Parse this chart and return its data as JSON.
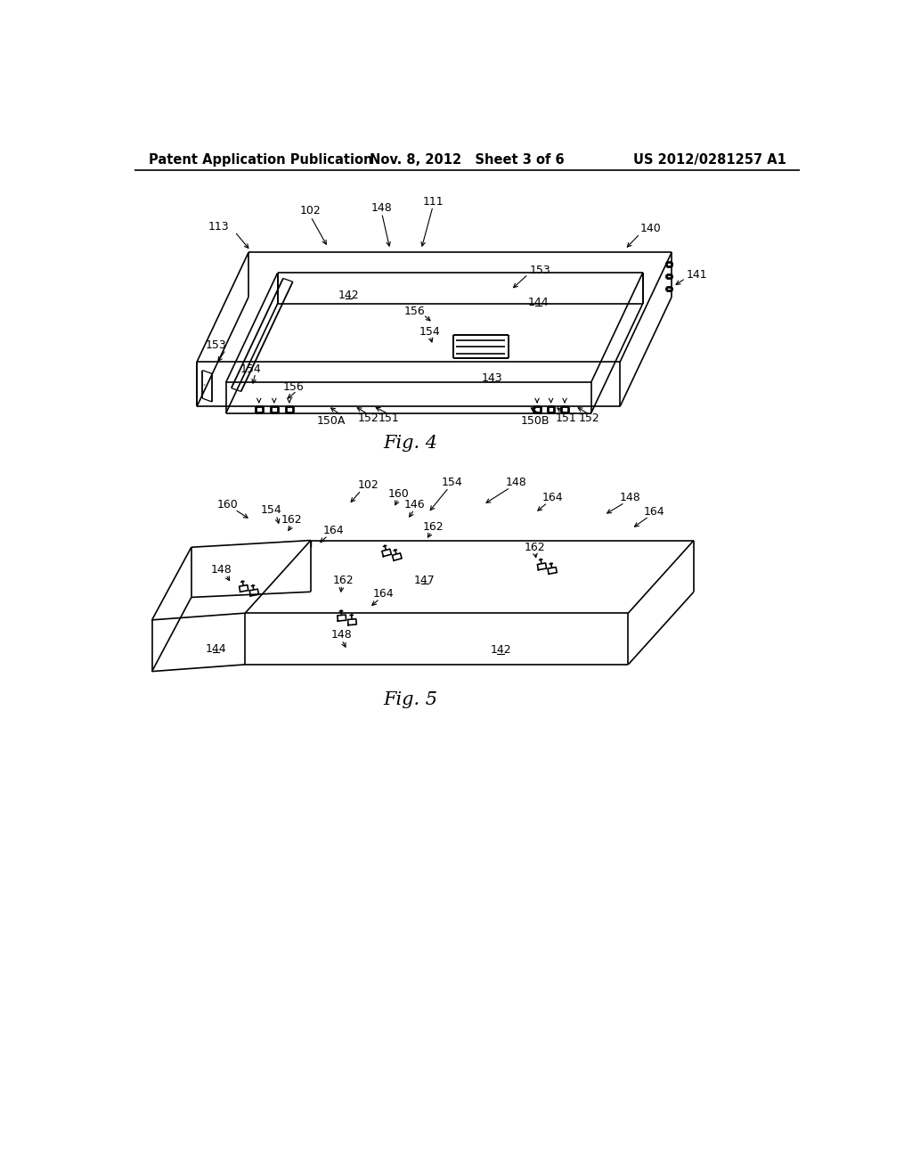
{
  "background_color": "#ffffff",
  "header_left": "Patent Application Publication",
  "header_center": "Nov. 8, 2012   Sheet 3 of 6",
  "header_right": "US 2012/0281257 A1",
  "fig4_caption": "Fig. 4",
  "fig5_caption": "Fig. 5",
  "line_color": "#000000",
  "text_color": "#000000",
  "font_size_header": 10.5,
  "font_size_label": 9,
  "font_size_caption": 15
}
